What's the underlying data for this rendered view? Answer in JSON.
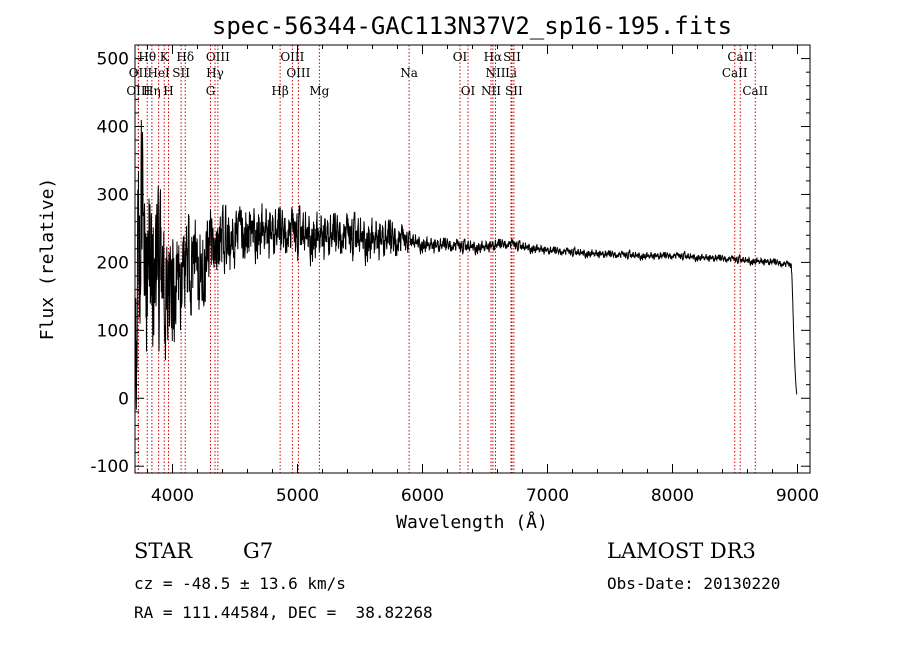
{
  "chart_data": {
    "type": "line",
    "title": "spec-56344-GAC113N37V2_sp16-195.fits",
    "xlabel": "Wavelength (Å)",
    "ylabel": "Flux (relative)",
    "xlim": [
      3700,
      9100
    ],
    "ylim": [
      -110,
      520
    ],
    "xticks": [
      4000,
      5000,
      6000,
      7000,
      8000,
      9000
    ],
    "yticks": [
      -100,
      0,
      100,
      200,
      300,
      400,
      500
    ],
    "yticks_labels": [
      "-100",
      "0",
      "100",
      "200",
      "300",
      "400",
      "500"
    ],
    "series": [
      {
        "name": "flux",
        "anchors": [
          [
            3700,
            80
          ],
          [
            3750,
            280
          ],
          [
            3800,
            210
          ],
          [
            3850,
            190
          ],
          [
            3900,
            170
          ],
          [
            3950,
            160
          ],
          [
            4000,
            170
          ],
          [
            4100,
            180
          ],
          [
            4200,
            200
          ],
          [
            4300,
            215
          ],
          [
            4400,
            230
          ],
          [
            4500,
            240
          ],
          [
            4600,
            245
          ],
          [
            4700,
            245
          ],
          [
            4800,
            240
          ],
          [
            4900,
            238
          ],
          [
            5000,
            238
          ],
          [
            5100,
            237
          ],
          [
            5200,
            236
          ],
          [
            5300,
            235
          ],
          [
            5400,
            234
          ],
          [
            5500,
            233
          ],
          [
            5600,
            232
          ],
          [
            5700,
            231
          ],
          [
            5800,
            228
          ],
          [
            5900,
            230
          ],
          [
            6000,
            226
          ],
          [
            6100,
            224
          ],
          [
            6200,
            224
          ],
          [
            6300,
            222
          ],
          [
            6400,
            222
          ],
          [
            6500,
            222
          ],
          [
            6600,
            225
          ],
          [
            6700,
            226
          ],
          [
            6800,
            222
          ],
          [
            6900,
            220
          ],
          [
            7000,
            217
          ],
          [
            7200,
            214
          ],
          [
            7400,
            212
          ],
          [
            7600,
            210
          ],
          [
            7800,
            209
          ],
          [
            8000,
            209
          ],
          [
            8200,
            207
          ],
          [
            8400,
            205
          ],
          [
            8600,
            202
          ],
          [
            8800,
            200
          ],
          [
            8950,
            195
          ],
          [
            9000,
            0
          ]
        ],
        "noise": [
          [
            3700,
            140
          ],
          [
            3800,
            150
          ],
          [
            4000,
            90
          ],
          [
            4300,
            60
          ],
          [
            4500,
            45
          ],
          [
            5000,
            40
          ],
          [
            5800,
            32
          ],
          [
            5900,
            14
          ],
          [
            6500,
            10
          ],
          [
            7000,
            7
          ],
          [
            8000,
            6
          ],
          [
            9000,
            6
          ]
        ]
      }
    ],
    "spectral_lines": [
      {
        "label": "Hθ",
        "wavelength": 3798,
        "row": 0
      },
      {
        "label": "K",
        "wavelength": 3934,
        "row": 0
      },
      {
        "label": "Hδ",
        "wavelength": 4102,
        "row": 0
      },
      {
        "label": "OIII",
        "wavelength": 4363,
        "row": 0
      },
      {
        "label": "OIII",
        "wavelength": 4959,
        "row": 0
      },
      {
        "label": "OI",
        "wavelength": 6300,
        "row": 0
      },
      {
        "label": "Hα",
        "wavelength": 6563,
        "row": 0
      },
      {
        "label": "SII",
        "wavelength": 6716,
        "row": 0
      },
      {
        "label": "CaII",
        "wavelength": 8542,
        "row": 0
      },
      {
        "label": "OII",
        "wavelength": 3727,
        "row": 1
      },
      {
        "label": "HeI",
        "wavelength": 3889,
        "row": 1
      },
      {
        "label": "SII",
        "wavelength": 4069,
        "row": 1
      },
      {
        "label": "Hγ",
        "wavelength": 4340,
        "row": 1
      },
      {
        "label": "OIII",
        "wavelength": 5007,
        "row": 1
      },
      {
        "label": "Na",
        "wavelength": 5893,
        "row": 1
      },
      {
        "label": "NII",
        "wavelength": 6584,
        "row": 1
      },
      {
        "label": "Li",
        "wavelength": 6708,
        "row": 1
      },
      {
        "label": "CaII",
        "wavelength": 8498,
        "row": 1
      },
      {
        "label": "OIII",
        "wavelength": 3727,
        "row": 2
      },
      {
        "label": "Hη",
        "wavelength": 3835,
        "row": 2
      },
      {
        "label": "H",
        "wavelength": 3968,
        "row": 2
      },
      {
        "label": "G",
        "wavelength": 4304,
        "row": 2
      },
      {
        "label": "Hβ",
        "wavelength": 4861,
        "row": 2
      },
      {
        "label": "Mg",
        "wavelength": 5175,
        "row": 2
      },
      {
        "label": "OI",
        "wavelength": 6364,
        "row": 2
      },
      {
        "label": "NII",
        "wavelength": 6548,
        "row": 2
      },
      {
        "label": "SII",
        "wavelength": 6731,
        "row": 2
      },
      {
        "label": "CaII",
        "wavelength": 8662,
        "row": 2
      }
    ]
  },
  "info": {
    "class": "STAR",
    "subclass": "G7",
    "survey": "LAMOST DR3",
    "cz": "cz = -48.5 ± 13.6 km/s",
    "obs_date": "Obs-Date: 20130220",
    "coords": "RA = 111.44584, DEC =  38.82268"
  }
}
